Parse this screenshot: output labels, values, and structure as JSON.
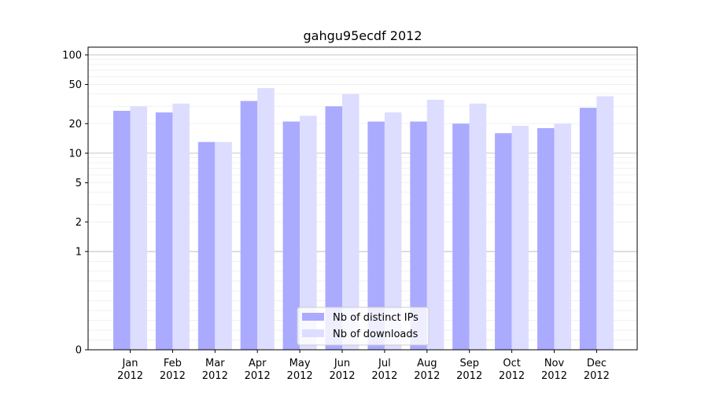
{
  "chart_data": {
    "type": "bar",
    "title": "gahgu95ecdf 2012",
    "xlabel": "",
    "ylabel": "",
    "yscale": "symlog",
    "ylim": [
      0,
      120
    ],
    "yticks": [
      0,
      1,
      2,
      5,
      10,
      20,
      50,
      100
    ],
    "ytick_labels": [
      "0",
      "1",
      "2",
      "5",
      "10",
      "20",
      "50",
      "100"
    ],
    "grid": true,
    "legend_position": "bottom-center",
    "categories": [
      "Jan\n2012",
      "Feb\n2012",
      "Mar\n2012",
      "Apr\n2012",
      "May\n2012",
      "Jun\n2012",
      "Jul\n2012",
      "Aug\n2012",
      "Sep\n2012",
      "Oct\n2012",
      "Nov\n2012",
      "Dec\n2012"
    ],
    "series": [
      {
        "name": "Nb of distinct IPs",
        "color": "#aaaaff",
        "values": [
          27,
          26,
          13,
          34,
          21,
          30,
          21,
          21,
          20,
          16,
          18,
          29
        ]
      },
      {
        "name": "Nb of downloads",
        "color": "#ddddff",
        "values": [
          30,
          32,
          13,
          46,
          24,
          40,
          26,
          35,
          32,
          19,
          20,
          38
        ]
      }
    ]
  }
}
